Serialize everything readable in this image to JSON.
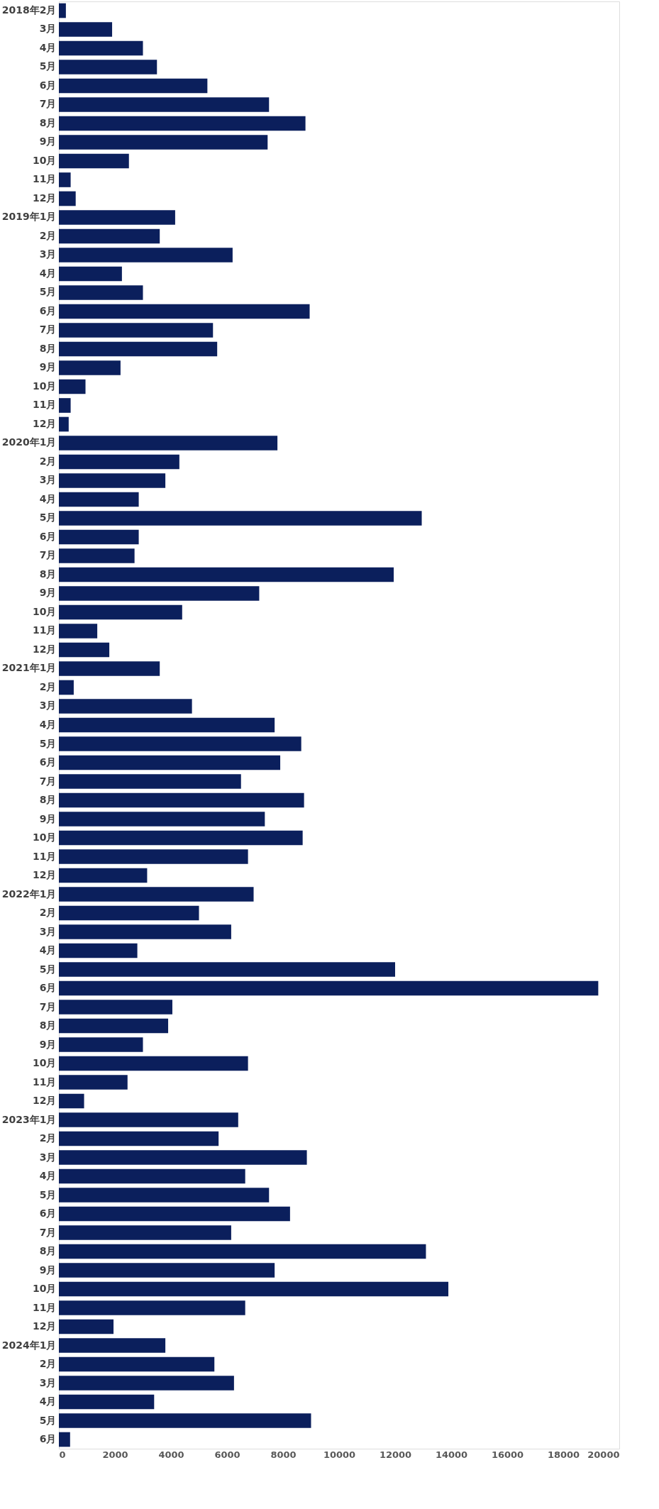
{
  "chart_data": {
    "type": "bar",
    "orientation": "horizontal",
    "color": "#0b1f5c",
    "grid": false,
    "categories": [
      "2018年2月",
      "3月",
      "4月",
      "5月",
      "6月",
      "7月",
      "8月",
      "9月",
      "10月",
      "11月",
      "12月",
      "2019年1月",
      "2月",
      "3月",
      "4月",
      "5月",
      "6月",
      "7月",
      "8月",
      "9月",
      "10月",
      "11月",
      "12月",
      "2020年1月",
      "2月",
      "3月",
      "4月",
      "5月",
      "6月",
      "7月",
      "8月",
      "9月",
      "10月",
      "11月",
      "12月",
      "2021年1月",
      "2月",
      "3月",
      "4月",
      "5月",
      "6月",
      "7月",
      "8月",
      "9月",
      "10月",
      "11月",
      "12月",
      "2022年1月",
      "2月",
      "3月",
      "4月",
      "5月",
      "6月",
      "7月",
      "8月",
      "9月",
      "10月",
      "11月",
      "12月",
      "2023年1月",
      "2月",
      "3月",
      "4月",
      "5月",
      "6月",
      "7月",
      "8月",
      "9月",
      "10月",
      "11月",
      "12月",
      "2024年1月",
      "2月",
      "3月",
      "4月",
      "5月",
      "6月"
    ],
    "values": [
      250,
      1900,
      3000,
      3500,
      5300,
      7500,
      8800,
      7450,
      2500,
      420,
      600,
      4150,
      3600,
      6200,
      2250,
      3000,
      8950,
      5500,
      5650,
      2200,
      950,
      420,
      350,
      7800,
      4300,
      3800,
      2850,
      12950,
      2850,
      2700,
      11950,
      7150,
      4400,
      1370,
      1800,
      3600,
      530,
      4750,
      7700,
      8650,
      7900,
      6500,
      8750,
      7350,
      8700,
      6750,
      3150,
      6950,
      5000,
      6150,
      2800,
      12000,
      19250,
      4050,
      3900,
      3000,
      6750,
      2450,
      900,
      6400,
      5700,
      8850,
      6650,
      7500,
      8250,
      6150,
      13100,
      7700,
      13900,
      6650,
      1950,
      3800,
      5550,
      6250,
      3400,
      9000,
      400
    ],
    "xlim": [
      0,
      20000
    ],
    "xticks": [
      0,
      2000,
      4000,
      6000,
      8000,
      10000,
      12000,
      14000,
      16000,
      18000,
      20000
    ]
  }
}
